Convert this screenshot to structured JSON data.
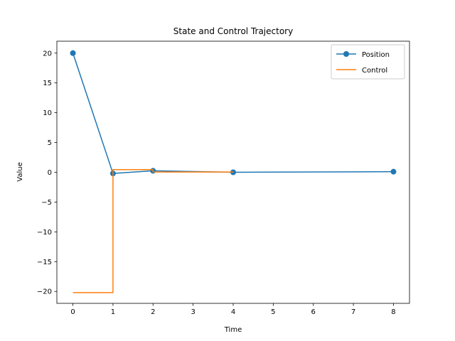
{
  "chart_data": {
    "type": "line",
    "title": "State and Control Trajectory",
    "xlabel": "Time",
    "ylabel": "Value",
    "xlim": [
      -0.4,
      8.4
    ],
    "ylim": [
      -22.0,
      22.0
    ],
    "xticks": [
      0,
      1,
      2,
      3,
      4,
      5,
      6,
      7,
      8
    ],
    "yticks": [
      -20,
      -15,
      -10,
      -5,
      0,
      5,
      10,
      15,
      20
    ],
    "xtick_labels": [
      "0",
      "1",
      "2",
      "3",
      "4",
      "5",
      "6",
      "7",
      "8"
    ],
    "ytick_labels": [
      "−20",
      "−15",
      "−10",
      "−5",
      "0",
      "5",
      "10",
      "15",
      "20"
    ],
    "grid": false,
    "legend_position": "top-right",
    "series": [
      {
        "name": "Position",
        "style": "line-marker",
        "color": "#1f77b4",
        "x": [
          0,
          1,
          2,
          4,
          8
        ],
        "y": [
          20.0,
          -0.2,
          0.25,
          0.0,
          0.1
        ]
      },
      {
        "name": "Control",
        "style": "step-post",
        "color": "#ff7f0e",
        "x": [
          0,
          1,
          2,
          4
        ],
        "y": [
          -20.2,
          0.45,
          0.05,
          0.0
        ]
      }
    ]
  }
}
